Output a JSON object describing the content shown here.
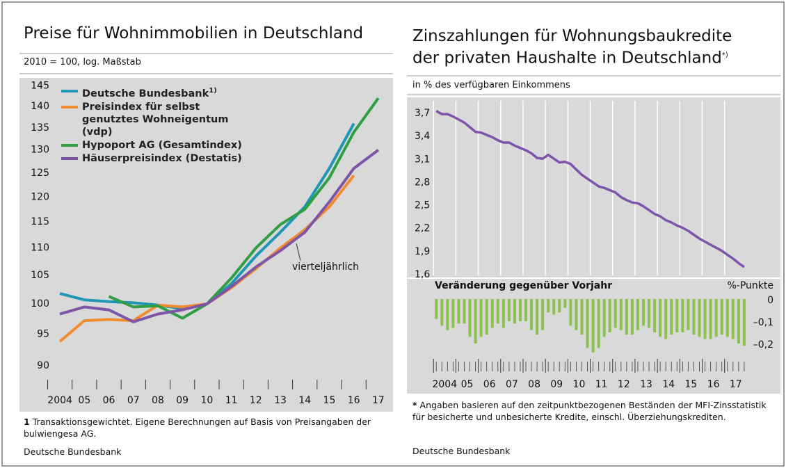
{
  "chart_data": [
    {
      "type": "line",
      "title": "Preise für Wohnimmobilien in Deutschland",
      "subtitle": "2010 = 100, log. Maßstab",
      "log_y": true,
      "ylim": [
        88,
        147
      ],
      "yticks": [
        90,
        95,
        100,
        105,
        110,
        115,
        120,
        125,
        130,
        135,
        140,
        145
      ],
      "xlim": [
        2003.9,
        2018.1
      ],
      "xticks": [
        {
          "value": 2004,
          "label": "2004"
        },
        {
          "value": 2005,
          "label": "05"
        },
        {
          "value": 2006,
          "label": "06"
        },
        {
          "value": 2007,
          "label": "07"
        },
        {
          "value": 2008,
          "label": "08"
        },
        {
          "value": 2009,
          "label": "09"
        },
        {
          "value": 2010,
          "label": "10"
        },
        {
          "value": 2011,
          "label": "11"
        },
        {
          "value": 2012,
          "label": "12"
        },
        {
          "value": 2013,
          "label": "13"
        },
        {
          "value": 2014,
          "label": "14"
        },
        {
          "value": 2015,
          "label": "15"
        },
        {
          "value": 2016,
          "label": "16"
        },
        {
          "value": 2017,
          "label": "17"
        }
      ],
      "series": [
        {
          "name": "Deutsche Bundesbank",
          "name_note": "1)",
          "color": "#1e96b4",
          "x": [
            2004.5,
            2005.5,
            2006.5,
            2007.5,
            2008.5,
            2009.5,
            2010.5,
            2011.5,
            2012.5,
            2013.5,
            2014.5,
            2015.5,
            2016.5
          ],
          "values": [
            101.8,
            100.7,
            100.4,
            100.2,
            99.8,
            99.2,
            100,
            103.5,
            108.5,
            113,
            118,
            126,
            136
          ]
        },
        {
          "name": "Preisindex für selbst genutztes Wohneigentum (vdp)",
          "color": "#f28a30",
          "x": [
            2004.5,
            2005.5,
            2006.5,
            2007.5,
            2008.5,
            2009.5,
            2010.5,
            2011.5,
            2012.5,
            2013.5,
            2014.5,
            2015.5,
            2016.5
          ],
          "values": [
            93.8,
            97.2,
            97.4,
            97.2,
            99.8,
            99.5,
            100,
            102.8,
            106.2,
            110,
            113.5,
            118,
            124.5
          ]
        },
        {
          "name": "Hypoport AG (Gesamtindex)",
          "color": "#2f9e44",
          "x": [
            2006.5,
            2007.5,
            2008.5,
            2009.5,
            2010.5,
            2011.5,
            2012.5,
            2013.5,
            2014.5,
            2015.5,
            2016.5,
            2017.5
          ],
          "values": [
            101.3,
            99.5,
            99.7,
            97.6,
            100,
            104.5,
            110,
            114.5,
            117.5,
            124,
            134,
            142
          ]
        },
        {
          "name": "Häuserpreisindex (Destatis)",
          "color": "#7c55a6",
          "x": [
            2004.5,
            2005.5,
            2006.5,
            2007.5,
            2008.5,
            2009.5,
            2010.5,
            2011.5,
            2012.5,
            2013.5,
            2014.5,
            2015.5,
            2016.5,
            2017.5
          ],
          "values": [
            98.3,
            99.5,
            99,
            97,
            98.3,
            99,
            100,
            103,
            106.5,
            109.5,
            113,
            119,
            126,
            130
          ]
        }
      ],
      "annotation": "vierteljährlich",
      "footnote_mark": "1",
      "footnote": "Transaktionsgewichtet. Eigene Berechnungen auf Basis von Preisangaben der bulwiengesa AG.",
      "source": "Deutsche Bundesbank"
    },
    {
      "type": "line",
      "title": "Zinszahlungen für Wohnungsbaukredite der privaten Haushalte in Deutschland",
      "title_note": "*)",
      "subtitle": "in % des verfügbaren Einkommens",
      "ylim": [
        1.55,
        3.8
      ],
      "yticks": [
        {
          "value": 1.6,
          "label": "1,6"
        },
        {
          "value": 1.9,
          "label": "1,9"
        },
        {
          "value": 2.2,
          "label": "2,2"
        },
        {
          "value": 2.5,
          "label": "2,5"
        },
        {
          "value": 2.8,
          "label": "2,8"
        },
        {
          "value": 3.1,
          "label": "3,1"
        },
        {
          "value": 3.4,
          "label": "3,4"
        },
        {
          "value": 3.7,
          "label": "3,7"
        }
      ],
      "xlim": [
        2003.9,
        2018.5
      ],
      "xticks": [
        {
          "value": 2004,
          "label": "2004"
        },
        {
          "value": 2005,
          "label": "05"
        },
        {
          "value": 2006,
          "label": "06"
        },
        {
          "value": 2007,
          "label": "07"
        },
        {
          "value": 2008,
          "label": "08"
        },
        {
          "value": 2009,
          "label": "09"
        },
        {
          "value": 2010,
          "label": "10"
        },
        {
          "value": 2011,
          "label": "11"
        },
        {
          "value": 2012,
          "label": "12"
        },
        {
          "value": 2013,
          "label": "13"
        },
        {
          "value": 2014,
          "label": "14"
        },
        {
          "value": 2015,
          "label": "15"
        },
        {
          "value": 2016,
          "label": "16"
        },
        {
          "value": 2017,
          "label": "17"
        }
      ],
      "color": "#7d55a8",
      "x": [
        2004.125,
        2004.375,
        2004.625,
        2004.875,
        2005.125,
        2005.375,
        2005.625,
        2005.875,
        2006.125,
        2006.375,
        2006.625,
        2006.875,
        2007.125,
        2007.375,
        2007.625,
        2007.875,
        2008.125,
        2008.375,
        2008.625,
        2008.875,
        2009.125,
        2009.375,
        2009.625,
        2009.875,
        2010.125,
        2010.375,
        2010.625,
        2010.875,
        2011.125,
        2011.375,
        2011.625,
        2011.875,
        2012.125,
        2012.375,
        2012.625,
        2012.875,
        2013.125,
        2013.375,
        2013.625,
        2013.875,
        2014.125,
        2014.375,
        2014.625,
        2014.875,
        2015.125,
        2015.375,
        2015.625,
        2015.875,
        2016.125,
        2016.375,
        2016.625,
        2016.875,
        2017.125,
        2017.375,
        2017.625,
        2017.875
      ],
      "values": [
        3.73,
        3.69,
        3.69,
        3.66,
        3.62,
        3.58,
        3.52,
        3.46,
        3.45,
        3.42,
        3.39,
        3.35,
        3.32,
        3.32,
        3.28,
        3.25,
        3.22,
        3.18,
        3.12,
        3.11,
        3.16,
        3.11,
        3.06,
        3.07,
        3.04,
        2.97,
        2.9,
        2.85,
        2.8,
        2.75,
        2.73,
        2.7,
        2.67,
        2.61,
        2.57,
        2.54,
        2.53,
        2.49,
        2.44,
        2.39,
        2.36,
        2.31,
        2.28,
        2.24,
        2.21,
        2.17,
        2.12,
        2.07,
        2.03,
        1.99,
        1.95,
        1.91,
        1.86,
        1.81,
        1.75,
        1.7
      ],
      "footnote_mark": "*",
      "footnote": "Angaben basieren auf den zeitpunktbezogenen Beständen der MFI-Zinsstatistik für besicherte und unbesicherte Kredite, einschl. Überziehungskrediten.",
      "source": "Deutsche Bundesbank"
    },
    {
      "type": "bar",
      "title": "Veränderung gegenüber Vorjahr",
      "unit": "%-Punkte",
      "color": "#8cc152",
      "ylim": [
        -0.25,
        0.02
      ],
      "yticks": [
        0,
        {
          "value": -0.1,
          "label": "–0,1"
        },
        {
          "value": -0.2,
          "label": "–0,2"
        }
      ],
      "x": [
        2004.125,
        2004.375,
        2004.625,
        2004.875,
        2005.125,
        2005.375,
        2005.625,
        2005.875,
        2006.125,
        2006.375,
        2006.625,
        2006.875,
        2007.125,
        2007.375,
        2007.625,
        2007.875,
        2008.125,
        2008.375,
        2008.625,
        2008.875,
        2009.125,
        2009.375,
        2009.625,
        2009.875,
        2010.125,
        2010.375,
        2010.625,
        2010.875,
        2011.125,
        2011.375,
        2011.625,
        2011.875,
        2012.125,
        2012.375,
        2012.625,
        2012.875,
        2013.125,
        2013.375,
        2013.625,
        2013.875,
        2014.125,
        2014.375,
        2014.625,
        2014.875,
        2015.125,
        2015.375,
        2015.625,
        2015.875,
        2016.125,
        2016.375,
        2016.625,
        2016.875,
        2017.125,
        2017.375,
        2017.625,
        2017.875
      ],
      "values": [
        -0.09,
        -0.12,
        -0.14,
        -0.13,
        -0.11,
        -0.11,
        -0.17,
        -0.2,
        -0.17,
        -0.16,
        -0.13,
        -0.11,
        -0.13,
        -0.1,
        -0.11,
        -0.1,
        -0.1,
        -0.14,
        -0.16,
        -0.14,
        -0.06,
        -0.07,
        -0.06,
        -0.04,
        -0.12,
        -0.14,
        -0.16,
        -0.22,
        -0.24,
        -0.22,
        -0.17,
        -0.15,
        -0.13,
        -0.14,
        -0.16,
        -0.16,
        -0.14,
        -0.12,
        -0.13,
        -0.15,
        -0.17,
        -0.18,
        -0.16,
        -0.15,
        -0.15,
        -0.14,
        -0.16,
        -0.17,
        -0.18,
        -0.18,
        -0.17,
        -0.16,
        -0.17,
        -0.18,
        -0.2,
        -0.21
      ]
    }
  ]
}
